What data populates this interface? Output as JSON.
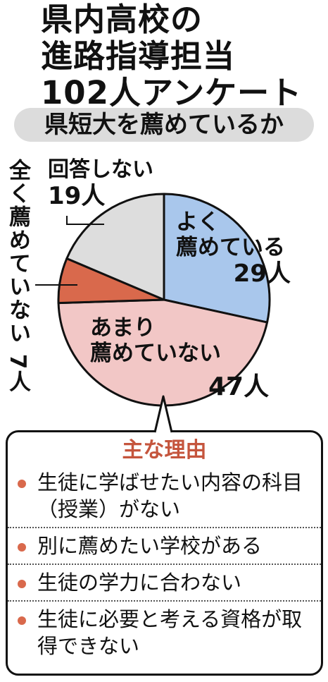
{
  "title_lines": [
    "県内高校の",
    "進路指導担当",
    "102人アンケート"
  ],
  "subtitle": "県短大を薦めているか",
  "colors": {
    "yoku": "#a9c7ec",
    "amari": "#f2c7c6",
    "mattaku": "#d9694c",
    "kaitou": "#dddddd",
    "reason_title": "#c5553d"
  },
  "chart_data": {
    "type": "pie",
    "title": "県短大を薦めているか",
    "slices": [
      {
        "label": "よく薦めている",
        "value": 29,
        "display": "29人"
      },
      {
        "label": "あまり薦めていない",
        "value": 47,
        "display": "47人"
      },
      {
        "label": "全く薦めていない",
        "value": 7,
        "display": "7人"
      },
      {
        "label": "回答しない",
        "value": 19,
        "display": "19人"
      }
    ],
    "total": 102
  },
  "labels": {
    "yoku_line1": "よく",
    "yoku_line2": "薦めている",
    "yoku_value": "29人",
    "amari_line1": "あまり",
    "amari_line2": "薦めていない",
    "amari_value": "47人",
    "kaitou_name": "回答しない",
    "kaitou_value": "19人",
    "mattaku_vertical": "全く薦めていない 7人"
  },
  "reasons": {
    "title": "主な理由",
    "items": [
      "生徒に学ばせたい内容の科目（授業）がない",
      "別に薦めたい学校がある",
      "生徒の学力に合わない",
      "生徒に必要と考える資格が取得できない"
    ]
  }
}
